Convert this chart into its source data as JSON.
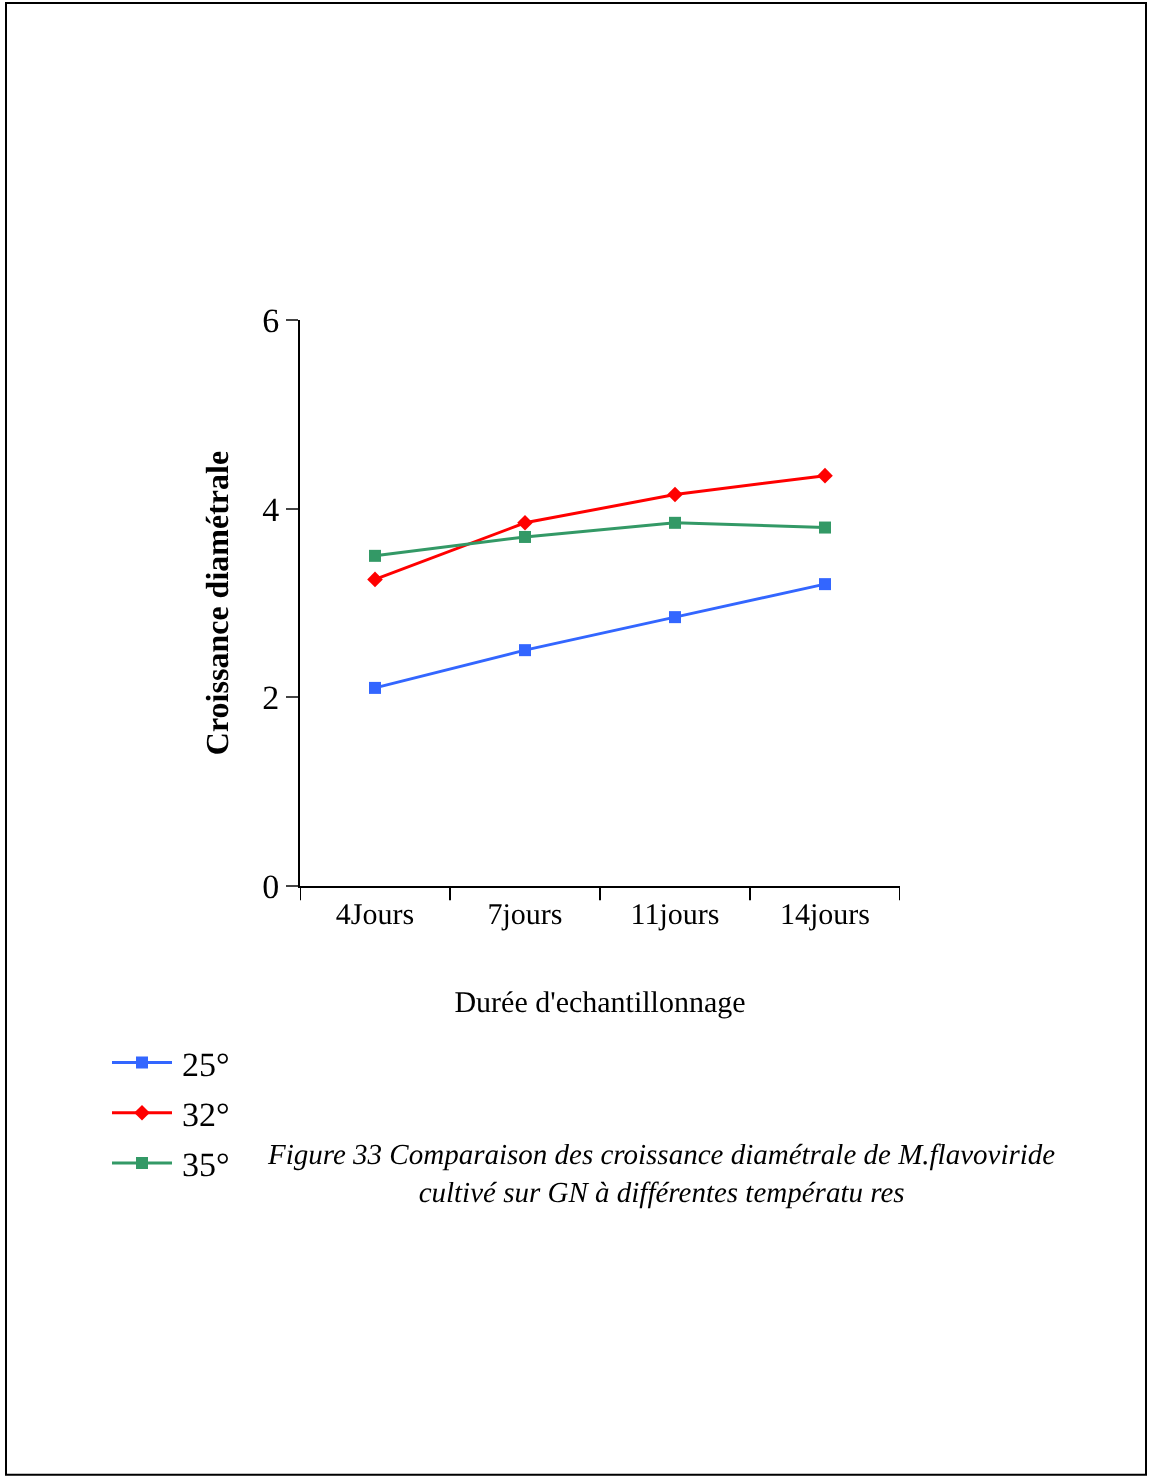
{
  "chart_data": {
    "type": "line",
    "categories": [
      "4Jours",
      "7jours",
      "11jours",
      "14jours"
    ],
    "series": [
      {
        "name": "25°",
        "color": "#3366ff",
        "marker": "square",
        "values": [
          2.1,
          2.5,
          2.85,
          3.2
        ]
      },
      {
        "name": "32°",
        "color": "#ff0000",
        "marker": "diamond",
        "values": [
          3.25,
          3.85,
          4.15,
          4.35
        ]
      },
      {
        "name": "35°",
        "color": "#339966",
        "marker": "square",
        "values": [
          3.5,
          3.7,
          3.85,
          3.8
        ]
      }
    ],
    "xlabel": "Durée d'echantillonnage",
    "ylabel": "Croissance diamétrale",
    "ylim": [
      0,
      6
    ],
    "yticks": [
      0,
      2,
      4,
      6
    ],
    "legend": "bottom left",
    "annotations": [
      "Figure 33 Comparaison des croissance diamétrale de M.flavoviride\ncultivé sur GN à différentes températu res"
    ]
  }
}
